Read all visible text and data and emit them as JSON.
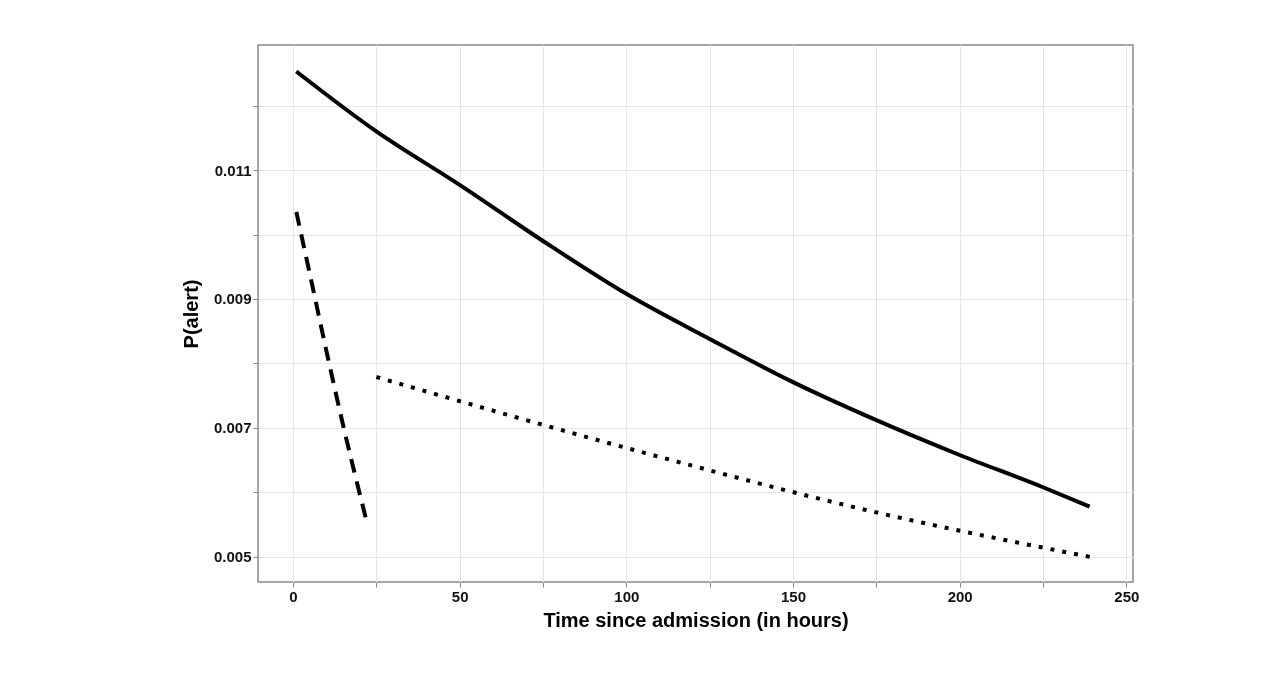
{
  "chart_data": {
    "type": "line",
    "xlabel": "Time since admission (in hours)",
    "ylabel": "P(alert)",
    "xlim": [
      -10.5,
      252
    ],
    "ylim": [
      0.00461,
      0.01294
    ],
    "xticks": [
      0,
      {
        "value": 25,
        "label": null
      },
      50,
      {
        "value": 75,
        "label": null
      },
      100,
      {
        "value": 125,
        "label": null
      },
      150,
      {
        "value": 175,
        "label": null
      },
      200,
      {
        "value": 225,
        "label": null
      },
      250
    ],
    "yticks": [
      0.005,
      {
        "value": 0.006,
        "label": null
      },
      0.007,
      {
        "value": 0.008,
        "label": null
      },
      0.009,
      {
        "value": 0.01,
        "label": null
      },
      0.011,
      {
        "value": 0.012,
        "label": null
      }
    ],
    "grid": true,
    "series": [
      {
        "color": "#000000",
        "line_style": "solid",
        "x": [
          1,
          25,
          50,
          75,
          100,
          125,
          150,
          175,
          200,
          225,
          239
        ],
        "values": [
          0.01253,
          0.0116,
          0.01077,
          0.0099,
          0.00908,
          0.00838,
          0.00771,
          0.00712,
          0.00658,
          0.00608,
          0.00578
        ]
      },
      {
        "color": "#000000",
        "line_style": "dashed",
        "x": [
          1,
          5,
          10,
          15,
          22
        ],
        "values": [
          0.01035,
          0.0094,
          0.0082,
          0.00705,
          0.00557
        ]
      },
      {
        "color": "#000000",
        "line_style": "dotted",
        "x": [
          25,
          100,
          175,
          239
        ],
        "values": [
          0.00779,
          0.00669,
          0.00569,
          0.005
        ]
      }
    ]
  }
}
